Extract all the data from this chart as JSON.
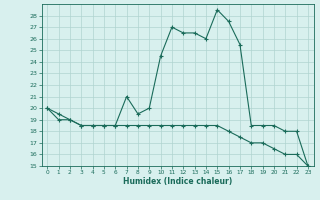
{
  "xlabel": "Humidex (Indice chaleur)",
  "x_values": [
    0,
    1,
    2,
    3,
    4,
    5,
    6,
    7,
    8,
    9,
    10,
    11,
    12,
    13,
    14,
    15,
    16,
    17,
    18,
    19,
    20,
    21,
    22,
    23
  ],
  "line1_y": [
    20.0,
    19.0,
    19.0,
    18.5,
    18.5,
    18.5,
    18.5,
    21.0,
    19.5,
    20.0,
    24.5,
    27.0,
    26.5,
    26.5,
    26.0,
    28.5,
    27.5,
    25.5,
    18.5,
    18.5,
    18.5,
    18.0,
    18.0,
    15.0
  ],
  "line2_y": [
    20.0,
    19.5,
    19.0,
    18.5,
    18.5,
    18.5,
    18.5,
    18.5,
    18.5,
    18.5,
    18.5,
    18.5,
    18.5,
    18.5,
    18.5,
    18.5,
    18.0,
    17.5,
    17.0,
    17.0,
    16.5,
    16.0,
    16.0,
    15.0
  ],
  "line_color": "#1a6b5a",
  "bg_color": "#d8f0ee",
  "grid_color": "#b0d4d0",
  "ylim": [
    15,
    29
  ],
  "xlim": [
    -0.5,
    23.5
  ],
  "yticks": [
    15,
    16,
    17,
    18,
    19,
    20,
    21,
    22,
    23,
    24,
    25,
    26,
    27,
    28
  ],
  "xticks": [
    0,
    1,
    2,
    3,
    4,
    5,
    6,
    7,
    8,
    9,
    10,
    11,
    12,
    13,
    14,
    15,
    16,
    17,
    18,
    19,
    20,
    21,
    22,
    23
  ]
}
